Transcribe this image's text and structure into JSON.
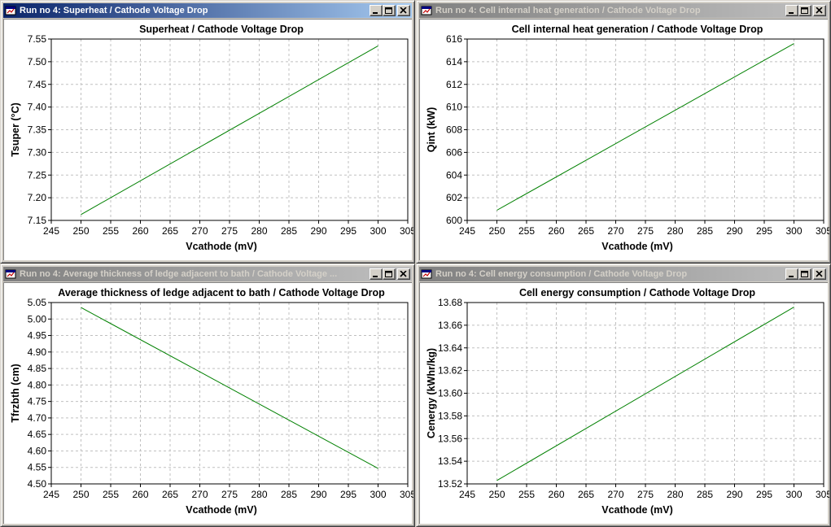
{
  "colors": {
    "line": "#008000",
    "grid": "#c0c0c0"
  },
  "windows": [
    {
      "title": "Run no 4: Superheat / Cathode Voltage Drop",
      "active": true,
      "chart_data": {
        "type": "line",
        "title": "Superheat / Cathode Voltage Drop",
        "xlabel": "Vcathode (mV)",
        "ylabel": "Tsuper (°C)",
        "x_ticks": [
          "245",
          "250",
          "255",
          "260",
          "265",
          "270",
          "275",
          "280",
          "285",
          "290",
          "295",
          "300",
          "305"
        ],
        "y_ticks": [
          "7.15",
          "7.20",
          "7.25",
          "7.30",
          "7.35",
          "7.40",
          "7.45",
          "7.50",
          "7.55"
        ],
        "xlim": [
          245,
          305
        ],
        "ylim": [
          7.15,
          7.55
        ],
        "grid": true,
        "series": [
          {
            "x": [
              250,
              300
            ],
            "y": [
              7.163,
              7.535
            ]
          }
        ]
      }
    },
    {
      "title": "Run no 4: Cell internal heat generation / Cathode Voltage Drop",
      "active": false,
      "chart_data": {
        "type": "line",
        "title": "Cell internal heat generation / Cathode Voltage Drop",
        "xlabel": "Vcathode (mV)",
        "ylabel": "Qint (kW)",
        "x_ticks": [
          "245",
          "250",
          "255",
          "260",
          "265",
          "270",
          "275",
          "280",
          "285",
          "290",
          "295",
          "300",
          "305"
        ],
        "y_ticks": [
          "600",
          "602",
          "604",
          "606",
          "608",
          "610",
          "612",
          "614",
          "616"
        ],
        "xlim": [
          245,
          305
        ],
        "ylim": [
          600,
          616
        ],
        "grid": true,
        "series": [
          {
            "x": [
              250,
              300
            ],
            "y": [
              600.9,
              615.6
            ]
          }
        ]
      }
    },
    {
      "title": "Run no 4: Average thickness of ledge adjacent to bath / Cathode Voltage ...",
      "active": false,
      "chart_data": {
        "type": "line",
        "title": "Average thickness of ledge adjacent to bath / Cathode Voltage Drop",
        "xlabel": "Vcathode (mV)",
        "ylabel": "Tfrzbth (cm)",
        "x_ticks": [
          "245",
          "250",
          "255",
          "260",
          "265",
          "270",
          "275",
          "280",
          "285",
          "290",
          "295",
          "300",
          "305"
        ],
        "y_ticks": [
          "4.50",
          "4.55",
          "4.60",
          "4.65",
          "4.70",
          "4.75",
          "4.80",
          "4.85",
          "4.90",
          "4.95",
          "5.00",
          "5.05"
        ],
        "xlim": [
          245,
          305
        ],
        "ylim": [
          4.5,
          5.05
        ],
        "grid": true,
        "series": [
          {
            "x": [
              250,
              300
            ],
            "y": [
              5.035,
              4.547
            ]
          }
        ]
      }
    },
    {
      "title": "Run no 4: Cell energy consumption / Cathode Voltage Drop",
      "active": false,
      "chart_data": {
        "type": "line",
        "title": "Cell energy consumption / Cathode Voltage Drop",
        "xlabel": "Vcathode (mV)",
        "ylabel": "Cenergy (kWhr/kg)",
        "x_ticks": [
          "245",
          "250",
          "255",
          "260",
          "265",
          "270",
          "275",
          "280",
          "285",
          "290",
          "295",
          "300",
          "305"
        ],
        "y_ticks": [
          "13.52",
          "13.54",
          "13.56",
          "13.58",
          "13.60",
          "13.62",
          "13.64",
          "13.66",
          "13.68"
        ],
        "xlim": [
          245,
          305
        ],
        "ylim": [
          13.52,
          13.68
        ],
        "grid": true,
        "series": [
          {
            "x": [
              250,
              300
            ],
            "y": [
              13.523,
              13.676
            ]
          }
        ]
      }
    }
  ]
}
